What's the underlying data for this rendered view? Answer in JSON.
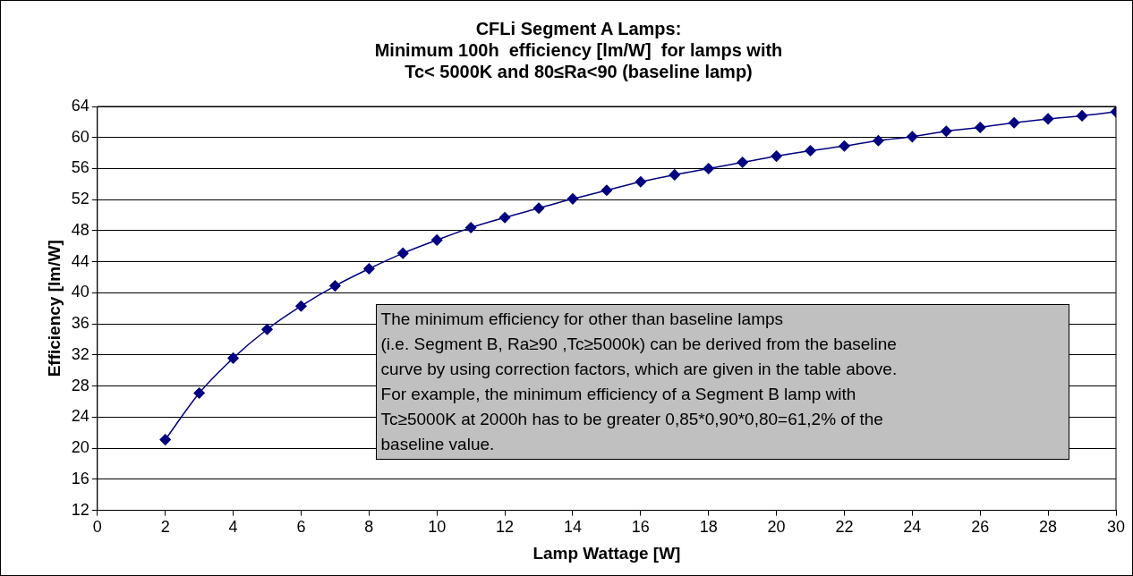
{
  "chart_data": {
    "type": "line",
    "title": "CFLi Segment A Lamps:\nMinimum 100h  efficiency [lm/W]  for lamps with\nTc< 5000K and 80≤Ra<90 (baseline lamp)",
    "xlabel": "Lamp Wattage [W]",
    "ylabel": "Efficiency [lm/W]",
    "x": [
      2,
      3,
      4,
      5,
      6,
      7,
      8,
      9,
      10,
      11,
      12,
      13,
      14,
      15,
      16,
      17,
      18,
      19,
      20,
      21,
      22,
      23,
      24,
      25,
      26,
      27,
      28,
      29,
      30
    ],
    "series": [
      {
        "color": "#000080",
        "values": [
          21.1,
          27.1,
          31.6,
          35.3,
          38.3,
          40.9,
          43.1,
          45.1,
          46.8,
          48.4,
          49.7,
          50.9,
          52.1,
          53.2,
          54.3,
          55.2,
          56,
          56.8,
          57.6,
          58.3,
          58.9,
          59.6,
          60.1,
          60.8,
          61.3,
          61.9,
          62.4,
          62.8,
          63.3
        ]
      }
    ],
    "xlim": [
      0,
      30
    ],
    "xticks": [
      0,
      2,
      4,
      6,
      8,
      10,
      12,
      14,
      16,
      18,
      20,
      22,
      24,
      26,
      28,
      30
    ],
    "ylim": [
      12,
      64
    ],
    "yticks": [
      12,
      16,
      20,
      24,
      28,
      32,
      36,
      40,
      44,
      48,
      52,
      56,
      60,
      64
    ],
    "grid": "y",
    "legend": false,
    "marker": "diamond",
    "line_style": "solid",
    "annotations": [
      "The minimum efficiency for other than baseline lamps\n(i.e. Segment B, Ra≥90 ,Tc≥5000k) can be derived from the baseline\ncurve by using correction factors, which are given in the table above.\nFor example, the minimum efficiency of a Segment B lamp with\nTc≥5000K at 2000h has to be greater 0,85*0,90*0,80=61,2% of the\nbaseline value."
    ]
  }
}
